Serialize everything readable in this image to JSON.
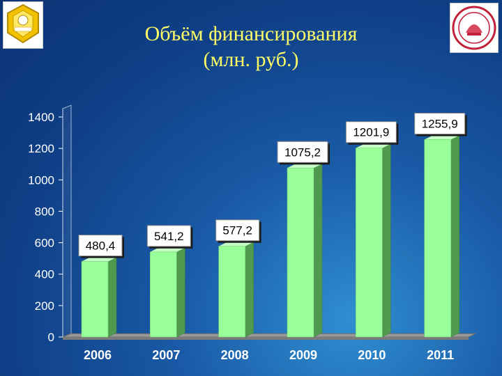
{
  "header": {
    "title_line1": "Объём финансирования",
    "title_line2": "(млн. руб.)"
  },
  "logos": {
    "left": "quality-award-badge",
    "right": "university-seal",
    "left_text": "ПРЕМИЯ ПРАВИТЕЛЬСТВА КАЧЕСТВО БЕЛАРУСЬ",
    "right_text": "ГДМУ"
  },
  "colors": {
    "bar_front": "#99ff99",
    "bar_side": "#4f9a4f",
    "bar_top": "#c8ffc8",
    "title": "#ffff66",
    "axis_text": "#ffffff"
  },
  "chart_data": {
    "type": "bar",
    "categories": [
      "2006",
      "2007",
      "2008",
      "2009",
      "2010",
      "2011"
    ],
    "values": [
      480.4,
      541.2,
      577.2,
      1075.2,
      1201.9,
      1255.9
    ],
    "data_labels": [
      "480,4",
      "541,2",
      "577,2",
      "1075,2",
      "1201,9",
      "1255,9"
    ],
    "y_ticks": [
      0,
      200,
      400,
      600,
      800,
      1000,
      1200,
      1400
    ],
    "ylim": [
      0,
      1400
    ],
    "title": "Объём финансирования (млн. руб.)",
    "grid": false,
    "legend": "none"
  }
}
